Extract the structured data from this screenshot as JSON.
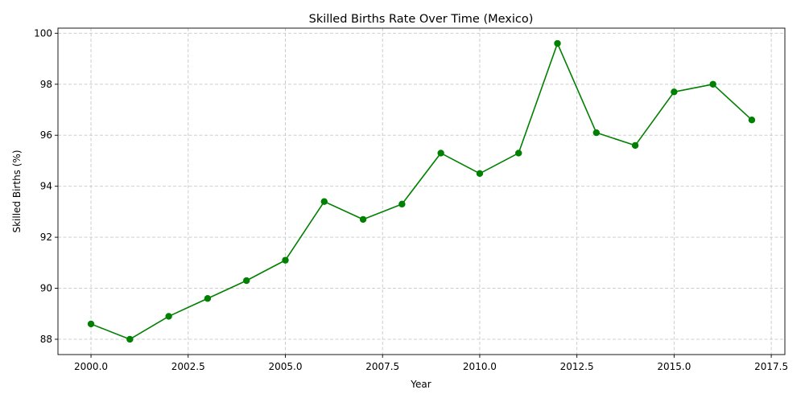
{
  "chart_data": {
    "type": "line",
    "title": "Skilled Births Rate Over Time (Mexico)",
    "xlabel": "Year",
    "ylabel": "Skilled Births (%)",
    "xlim": [
      1999.15,
      2017.85
    ],
    "ylim": [
      87.4,
      100.2
    ],
    "xticks": [
      2000.0,
      2002.5,
      2005.0,
      2007.5,
      2010.0,
      2012.5,
      2015.0,
      2017.5
    ],
    "xtick_labels": [
      "2000.0",
      "2002.5",
      "2005.0",
      "2007.5",
      "2010.0",
      "2012.5",
      "2015.0",
      "2017.5"
    ],
    "yticks": [
      88,
      90,
      92,
      94,
      96,
      98,
      100
    ],
    "ytick_labels": [
      "88",
      "90",
      "92",
      "94",
      "96",
      "98",
      "100"
    ],
    "grid": true,
    "series_color": "#008000",
    "series": [
      {
        "x": [
          2000,
          2001,
          2002,
          2003,
          2004,
          2005,
          2006,
          2007,
          2008,
          2009,
          2010,
          2011,
          2012,
          2013,
          2014,
          2015,
          2016,
          2017
        ],
        "values": [
          88.6,
          88.0,
          88.9,
          89.6,
          90.3,
          91.1,
          93.4,
          92.7,
          93.3,
          95.3,
          94.5,
          95.3,
          99.6,
          96.1,
          95.6,
          97.7,
          98.0,
          96.6
        ]
      }
    ]
  }
}
